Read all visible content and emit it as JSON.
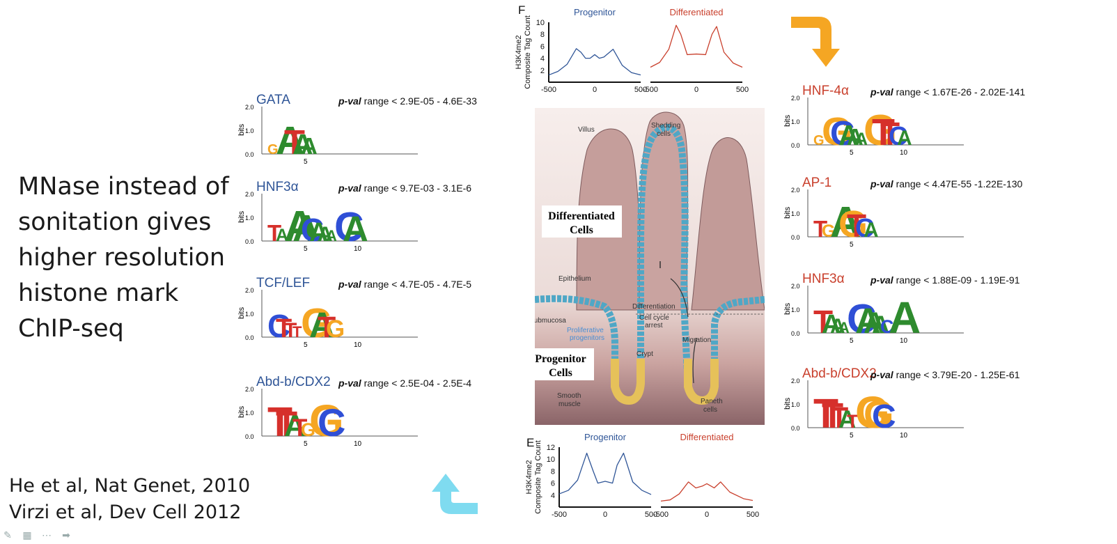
{
  "slide": {
    "body_lines": [
      "MNase instead of",
      "sonitation gives",
      "higher resolution",
      "histone mark",
      "ChIP-seq"
    ],
    "citations": [
      "He et al, Nat Genet, 2010",
      "Virzi et al, Dev Cell 2012"
    ]
  },
  "colors": {
    "blue": "#2f5597",
    "red": "#c9402d",
    "orange_arrow": "#f5a623",
    "cyan_arrow": "#7fdbf0"
  },
  "logo_axis": {
    "ylabel": "bits",
    "yticks": [
      "2.0",
      "1.0",
      "0.0"
    ]
  },
  "left_motifs": [
    {
      "name": "GATA",
      "pval_label": "p-val",
      "pval_text": "range < 2.9E-05 - 4.6E-33",
      "xticks": [
        "5"
      ],
      "letters": "GATAA"
    },
    {
      "name": "HNF3α",
      "pval_label": "p-val",
      "pval_text": "range < 9.7E-03 - 3.1E-6",
      "xticks": [
        "5",
        "10"
      ],
      "letters": "TAAACAAACA"
    },
    {
      "name": "TCF/LEF",
      "pval_label": "p-val",
      "pval_text": "range < 4.7E-05 - 4.7E-5",
      "xticks": [
        "5",
        "10"
      ],
      "letters": "CTTTGATG"
    },
    {
      "name": "Abd-b/CDX2",
      "pval_label": "p-val",
      "pval_text": "range < 2.5E-04 - 2.5E-4",
      "xticks": [
        "5",
        "10"
      ],
      "letters": "TTATGGC"
    }
  ],
  "right_motifs": [
    {
      "name": "HNF-4α",
      "pval_label": "p-val",
      "pval_text": "range < 1.67E-26 - 2.02E-141",
      "xticks": [
        "5",
        "10"
      ],
      "letters": "GGCAAAGTTCA"
    },
    {
      "name": "AP-1",
      "pval_label": "p-val",
      "pval_text": "range < 4.47E-55 -1.22E-130",
      "xticks": [
        "5"
      ],
      "letters": "TGAGTCA"
    },
    {
      "name": "HNF3α",
      "pval_label": "p-val",
      "pval_text": "range < 1.88E-09 - 1.19E-91",
      "xticks": [
        "5",
        "10"
      ],
      "letters": "TAAACAAACA"
    },
    {
      "name": "Abd-b/CDX2",
      "pval_label": "p-val",
      "pval_text": "range < 3.79E-20 - 1.25E-61",
      "xticks": [
        "5",
        "10"
      ],
      "letters": "TTTATGGC"
    }
  ],
  "panel_f": {
    "letter": "F",
    "ylabel_lines": [
      "H3K4me2",
      "Composite Tag Count"
    ],
    "yticks": [
      2,
      4,
      6,
      8,
      10
    ],
    "ylim": [
      0,
      10
    ],
    "xticks": [
      -500,
      0,
      500
    ],
    "progenitor_label": "Progenitor",
    "differentiated_label": "Differentiated",
    "progenitor_curve": [
      [
        -500,
        1.2
      ],
      [
        -400,
        1.8
      ],
      [
        -300,
        3
      ],
      [
        -200,
        5.6
      ],
      [
        -150,
        5
      ],
      [
        -100,
        4
      ],
      [
        -50,
        4
      ],
      [
        0,
        4.6
      ],
      [
        50,
        4
      ],
      [
        100,
        4.2
      ],
      [
        200,
        5.5
      ],
      [
        300,
        2.8
      ],
      [
        400,
        1.6
      ],
      [
        500,
        1.2
      ]
    ],
    "differentiated_curve": [
      [
        -500,
        2.5
      ],
      [
        -400,
        3.3
      ],
      [
        -300,
        5.5
      ],
      [
        -220,
        9.5
      ],
      [
        -170,
        8
      ],
      [
        -100,
        4.6
      ],
      [
        0,
        4.7
      ],
      [
        100,
        4.6
      ],
      [
        170,
        8
      ],
      [
        220,
        9.3
      ],
      [
        300,
        5
      ],
      [
        400,
        3.2
      ],
      [
        500,
        2.5
      ]
    ]
  },
  "panel_e": {
    "letter": "E",
    "ylabel_lines": [
      "H3K4me2",
      "Composite Tag Count"
    ],
    "yticks": [
      4,
      6,
      8,
      10,
      12
    ],
    "ylim": [
      2,
      12
    ],
    "xticks": [
      -500,
      0,
      500
    ],
    "progenitor_label": "Progenitor",
    "differentiated_label": "Differentiated",
    "progenitor_curve": [
      [
        -500,
        4.2
      ],
      [
        -400,
        4.8
      ],
      [
        -300,
        6.5
      ],
      [
        -200,
        11
      ],
      [
        -130,
        8
      ],
      [
        -80,
        6
      ],
      [
        0,
        6.3
      ],
      [
        80,
        6
      ],
      [
        130,
        9
      ],
      [
        200,
        11
      ],
      [
        300,
        6.2
      ],
      [
        400,
        4.8
      ],
      [
        500,
        4.1
      ]
    ],
    "differentiated_curve": [
      [
        -500,
        3
      ],
      [
        -400,
        3.2
      ],
      [
        -300,
        4.2
      ],
      [
        -200,
        6.2
      ],
      [
        -120,
        5.2
      ],
      [
        -50,
        5.5
      ],
      [
        0,
        5.9
      ],
      [
        80,
        5.2
      ],
      [
        150,
        6.2
      ],
      [
        250,
        4.5
      ],
      [
        400,
        3.4
      ],
      [
        500,
        3.1
      ]
    ]
  },
  "schematic": {
    "labels": {
      "villus": "Villus",
      "shedding": [
        "Shedding",
        "cells"
      ],
      "epithelium": "Epithelium",
      "submucosa": "Submucosa",
      "proliferative": [
        "Proliferative",
        "progenitors"
      ],
      "differentiation": "Differentiation",
      "cell_cycle": [
        "Cell cycle",
        "arrest"
      ],
      "crypt": "Crypt",
      "migration": "Migration",
      "smooth_muscle": [
        "Smooth",
        "muscle"
      ],
      "paneth": [
        "Paneth",
        "cells"
      ]
    },
    "differentiated_box": [
      "Differentiated",
      "Cells"
    ],
    "progenitor_box": [
      "Progenitor",
      "Cells"
    ]
  },
  "toolbar": {
    "icons": [
      "pen-icon",
      "slide-grid-icon",
      "more-icon",
      "next-arrow-icon"
    ]
  }
}
